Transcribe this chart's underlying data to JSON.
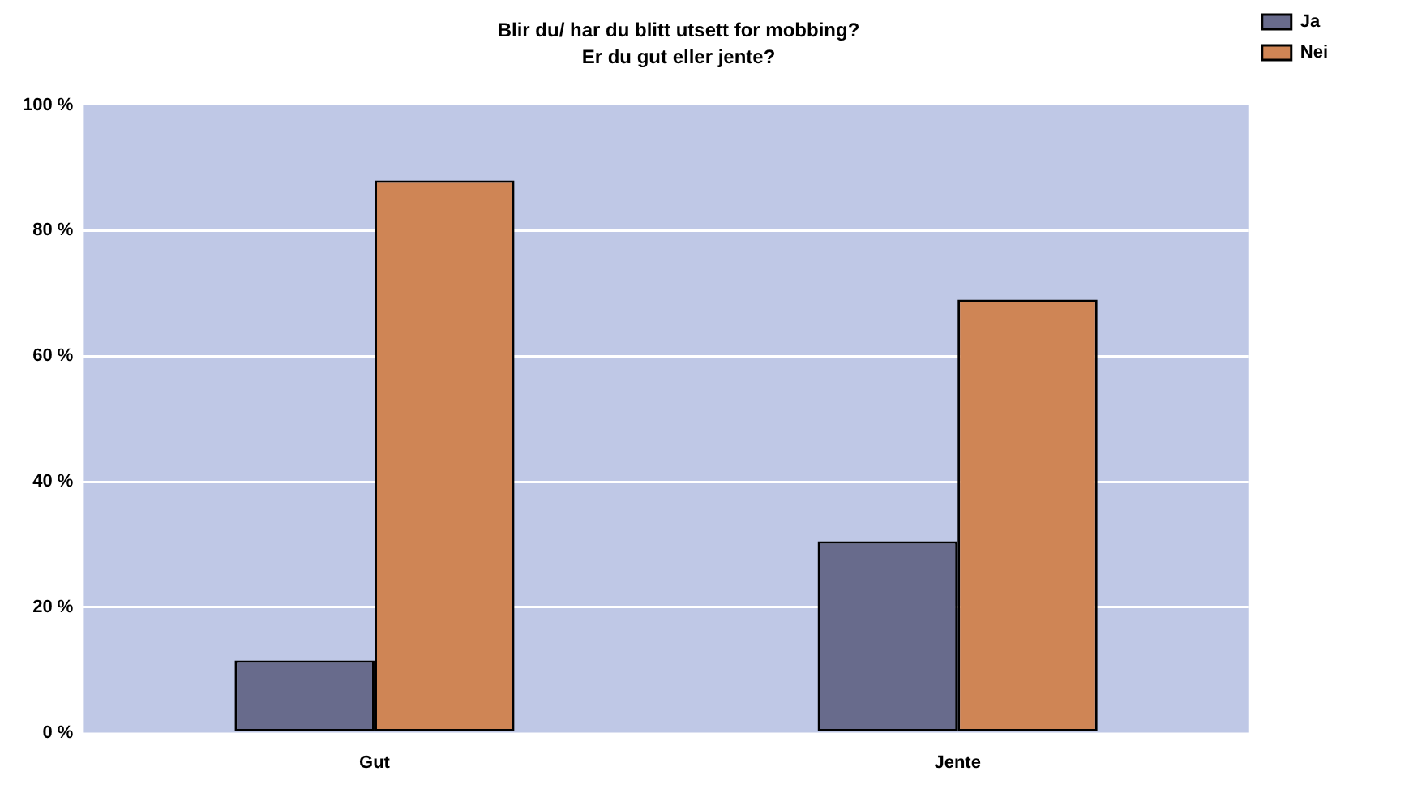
{
  "chart_data": {
    "type": "bar",
    "title": "Blir du/ har du blitt utsett for mobbing?",
    "subtitle": "Er du gut eller jente?",
    "categories": [
      "Gut",
      "Jente"
    ],
    "series": [
      {
        "name": "Ja",
        "color": "#686b8c",
        "values": [
          11.5,
          30.5
        ]
      },
      {
        "name": "Nei",
        "color": "#cf8555",
        "values": [
          88,
          69
        ]
      }
    ],
    "ylim": [
      0,
      100
    ],
    "yticks": [
      {
        "value": 0,
        "label": "0 %"
      },
      {
        "value": 20,
        "label": "20 %"
      },
      {
        "value": 40,
        "label": "40 %"
      },
      {
        "value": 60,
        "label": "60 %"
      },
      {
        "value": 80,
        "label": "80 %"
      },
      {
        "value": 100,
        "label": "100 %"
      }
    ],
    "grid": "y",
    "legend": "top right"
  }
}
